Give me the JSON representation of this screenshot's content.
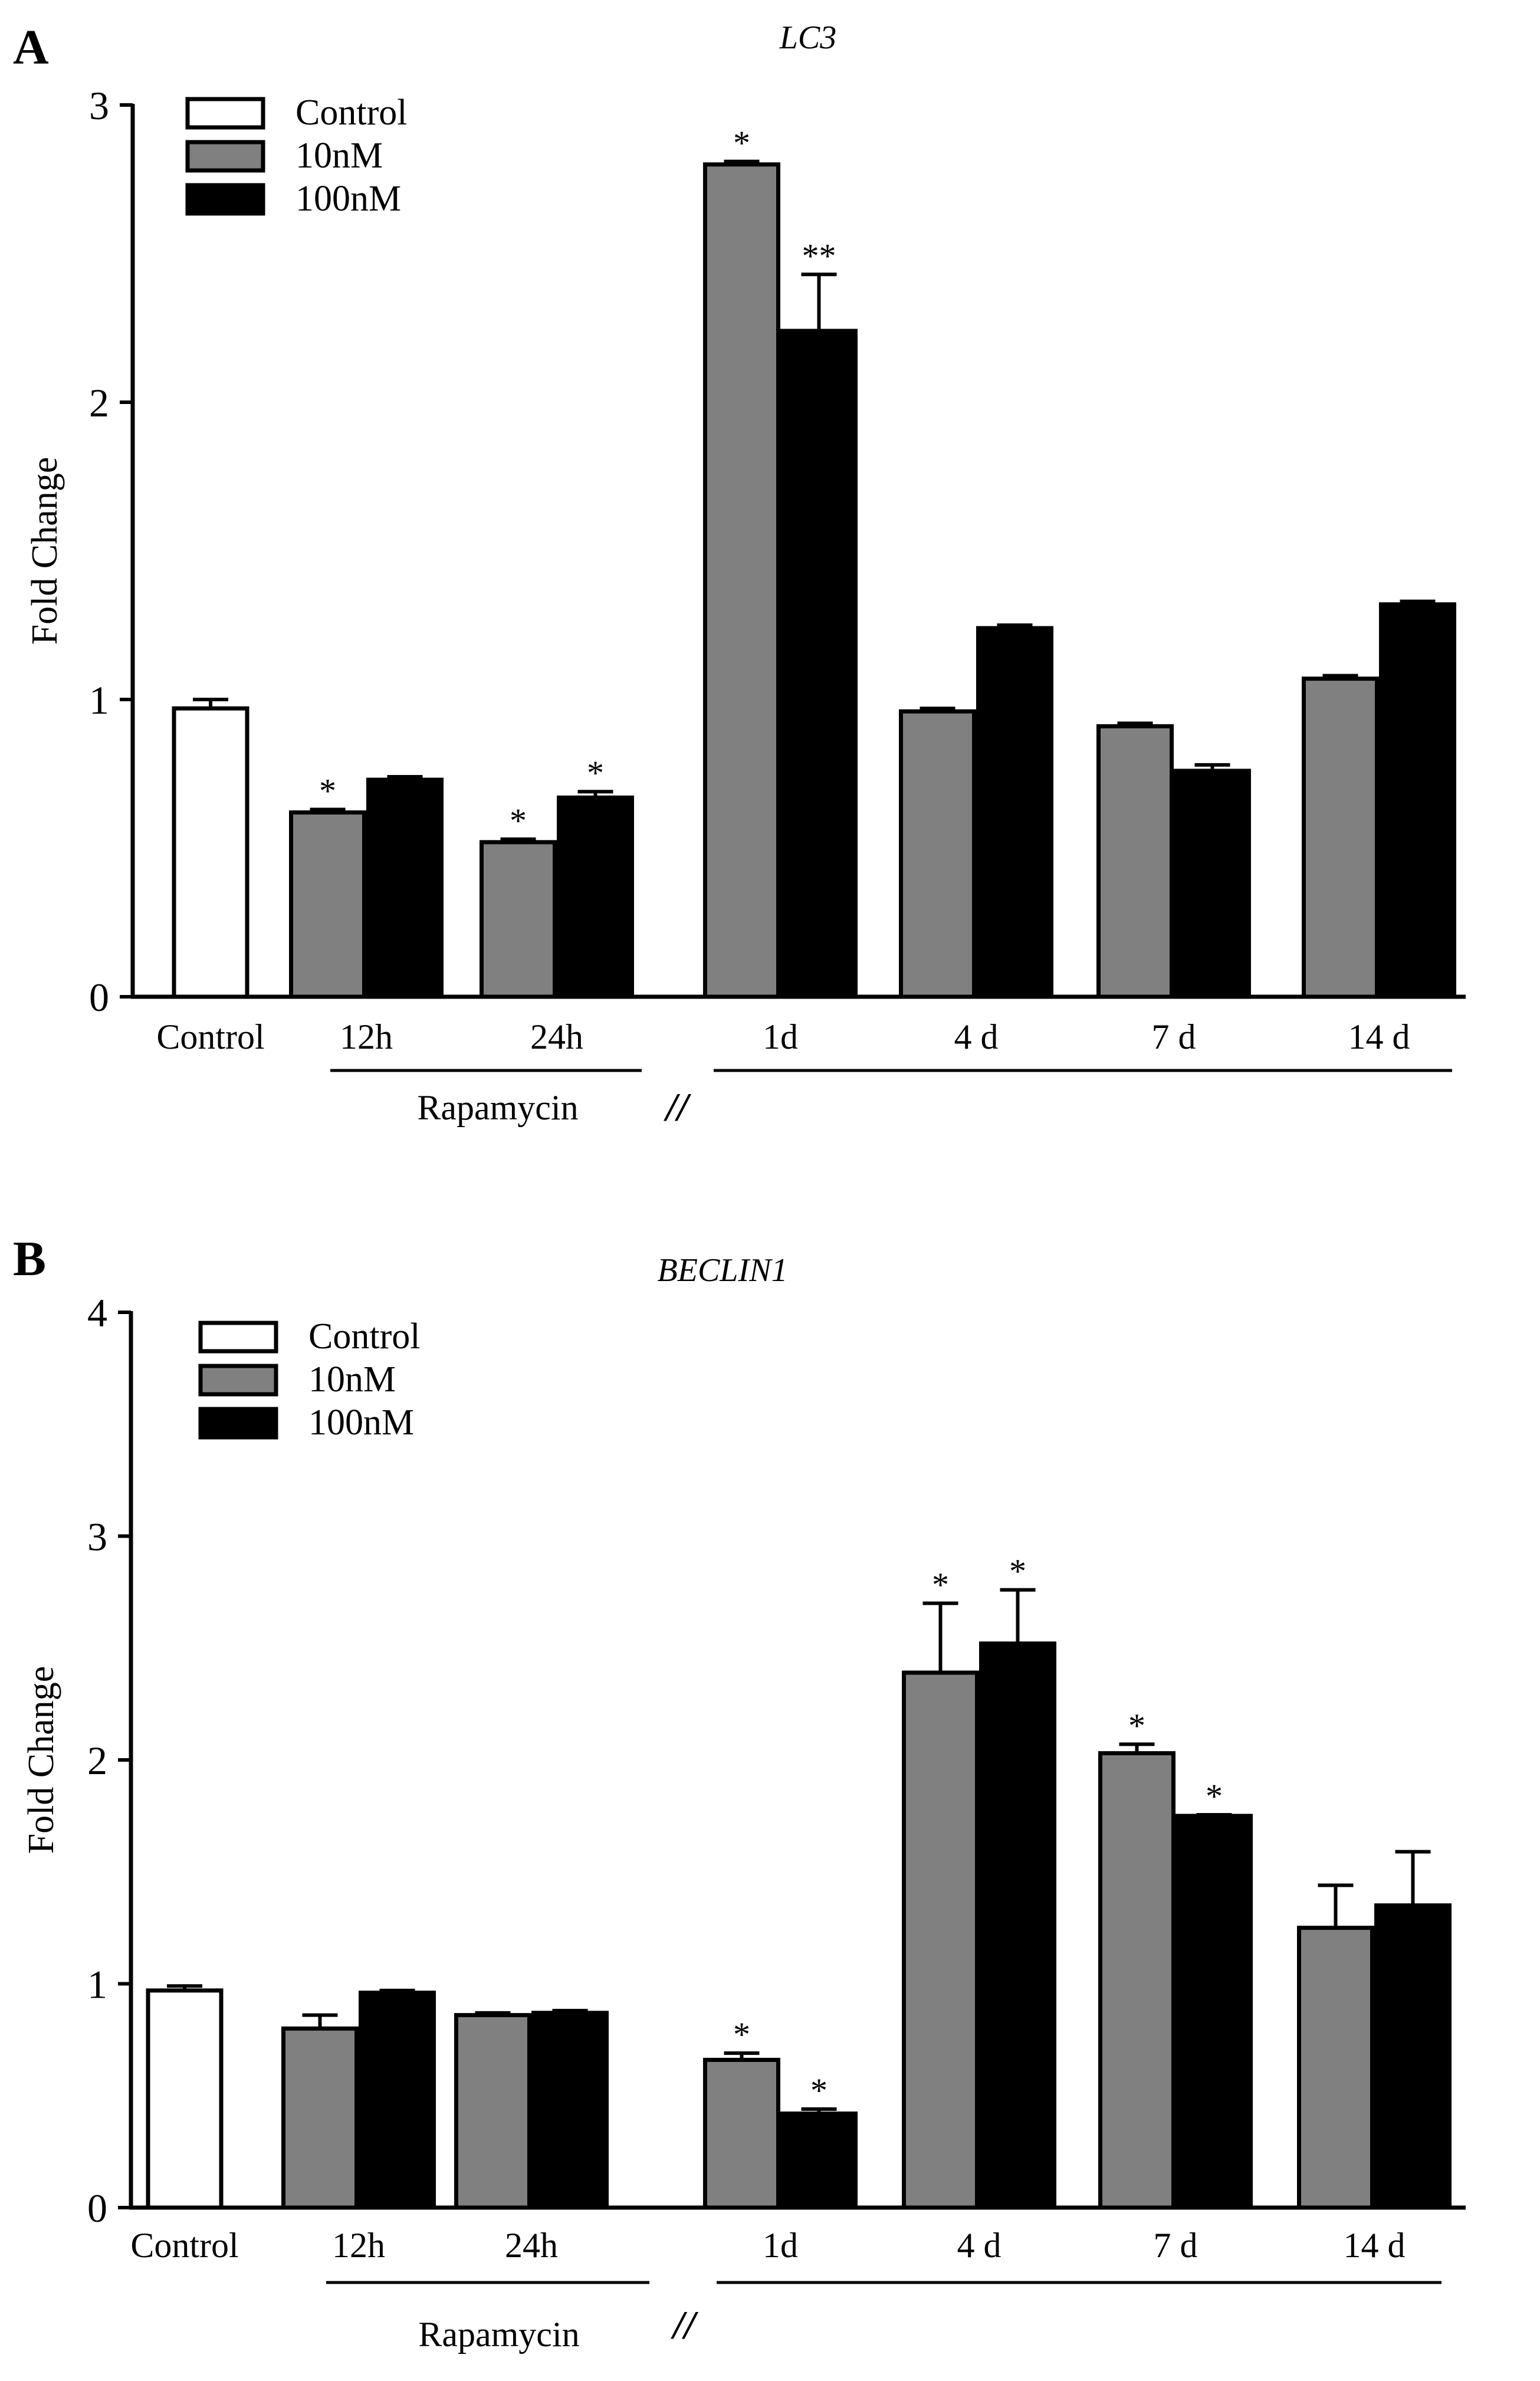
{
  "chart_data": [
    {
      "type": "bar",
      "panel_letter": "A",
      "title": "LC3",
      "ylabel": "Fold Change",
      "xlabel": "",
      "ylim": [
        0,
        3
      ],
      "yticks": [
        "0",
        "1",
        "2",
        "3"
      ],
      "legend": [
        "Control",
        "10nM",
        "100nM"
      ],
      "legend_position": "top-left",
      "group_label": "Rapamycin",
      "axis_break_symbol": "//",
      "categories": [
        "Control",
        "12h",
        "24h",
        "1d",
        "4 d",
        "7 d",
        "14 d"
      ],
      "series": [
        {
          "name": "Control",
          "color": "#ffffff",
          "values": [
            0.97,
            null,
            null,
            null,
            null,
            null,
            null
          ],
          "errors": [
            0.03,
            null,
            null,
            null,
            null,
            null,
            null
          ],
          "annotations": [
            "",
            "",
            "",
            "",
            "",
            "",
            ""
          ]
        },
        {
          "name": "10nM",
          "color": "#808080",
          "values": [
            null,
            0.62,
            0.52,
            2.8,
            0.96,
            0.91,
            1.07
          ],
          "errors": [
            null,
            0.01,
            0.01,
            0.01,
            0.01,
            0.01,
            0.01
          ],
          "annotations": [
            "",
            "*",
            "*",
            "*",
            "",
            "",
            ""
          ]
        },
        {
          "name": "100nM",
          "color": "#000000",
          "values": [
            null,
            0.73,
            0.67,
            2.24,
            1.24,
            0.76,
            1.32
          ],
          "errors": [
            null,
            0.01,
            0.02,
            0.19,
            0.01,
            0.02,
            0.01
          ],
          "annotations": [
            "",
            "",
            "*",
            "**",
            "",
            "",
            ""
          ]
        }
      ]
    },
    {
      "type": "bar",
      "panel_letter": "B",
      "title": "BECLIN1",
      "ylabel": "Fold Change",
      "xlabel": "",
      "ylim": [
        0,
        4
      ],
      "yticks": [
        "0",
        "1",
        "2",
        "3",
        "4"
      ],
      "legend": [
        "Control",
        "10nM",
        "100nM"
      ],
      "legend_position": "top-left",
      "group_label": "Rapamycin",
      "axis_break_symbol": "//",
      "categories": [
        "Control",
        "12h",
        "24h",
        "1d",
        "4 d",
        "7 d",
        "14 d"
      ],
      "series": [
        {
          "name": "Control",
          "color": "#ffffff",
          "values": [
            0.97,
            null,
            null,
            null,
            null,
            null,
            null
          ],
          "errors": [
            0.02,
            null,
            null,
            null,
            null,
            null,
            null
          ],
          "annotations": [
            "",
            "",
            "",
            "",
            "",
            "",
            ""
          ]
        },
        {
          "name": "10nM",
          "color": "#808080",
          "values": [
            null,
            0.8,
            0.86,
            0.66,
            2.39,
            2.03,
            1.25
          ],
          "errors": [
            null,
            0.06,
            0.01,
            0.03,
            0.31,
            0.04,
            0.19
          ],
          "annotations": [
            "",
            "",
            "",
            "*",
            "*",
            "*",
            ""
          ]
        },
        {
          "name": "100nM",
          "color": "#000000",
          "values": [
            null,
            0.96,
            0.87,
            0.42,
            2.52,
            1.75,
            1.35
          ],
          "errors": [
            null,
            0.01,
            0.01,
            0.02,
            0.24,
            0.005,
            0.24
          ],
          "annotations": [
            "",
            "",
            "",
            "*",
            "*",
            "*",
            ""
          ]
        }
      ]
    }
  ]
}
